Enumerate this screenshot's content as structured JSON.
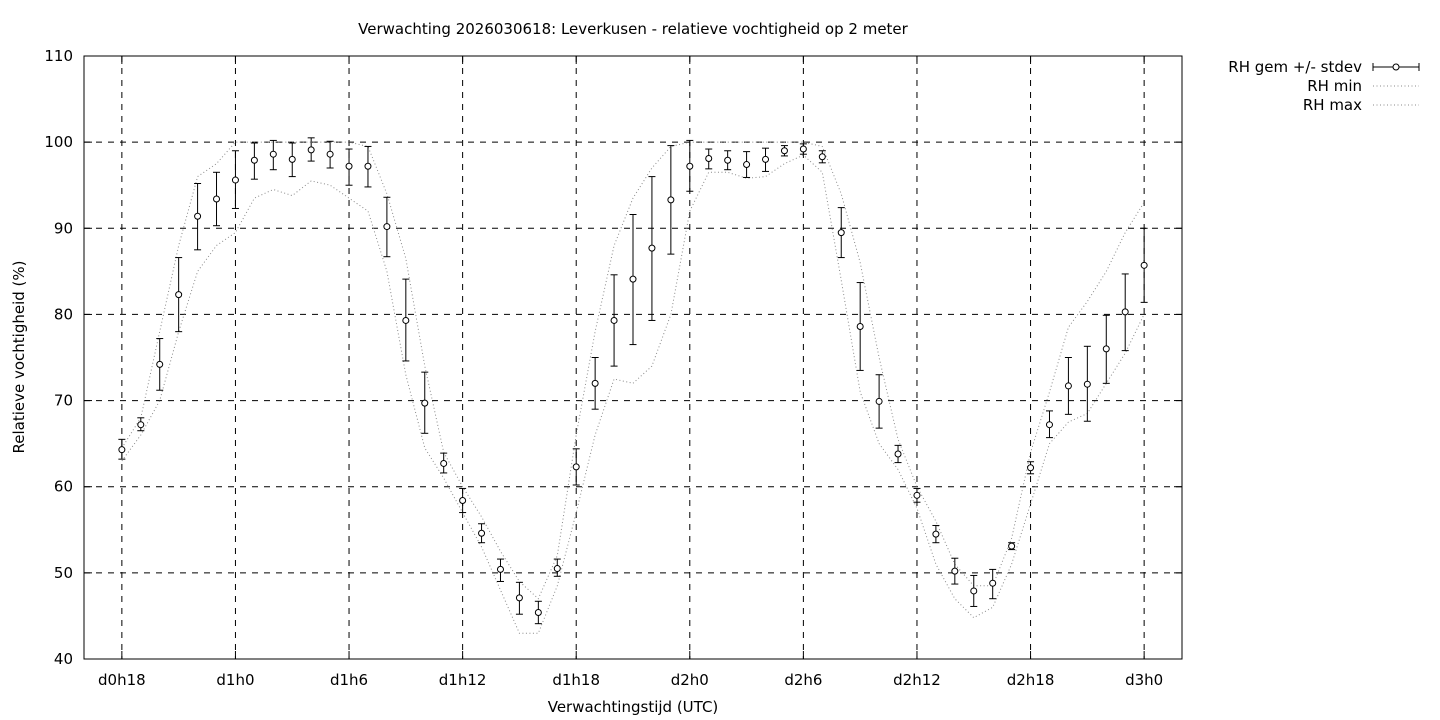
{
  "chart_data": {
    "type": "line",
    "title": "Verwachting 2026030618: Leverkusen - relatieve vochtigheid op 2 meter",
    "xlabel": "Verwachtingstijd (UTC)",
    "ylabel": "Relatieve vochtigheid (%)",
    "ylim": [
      40,
      110
    ],
    "xlim": [
      -2,
      56
    ],
    "grid": true,
    "legend_position": "top-right-outside",
    "x_ticks": [
      {
        "x": 0,
        "label": "d0h18"
      },
      {
        "x": 6,
        "label": "d1h0"
      },
      {
        "x": 12,
        "label": "d1h6"
      },
      {
        "x": 18,
        "label": "d1h12"
      },
      {
        "x": 24,
        "label": "d1h18"
      },
      {
        "x": 30,
        "label": "d2h0"
      },
      {
        "x": 36,
        "label": "d2h6"
      },
      {
        "x": 42,
        "label": "d2h12"
      },
      {
        "x": 48,
        "label": "d2h18"
      },
      {
        "x": 54,
        "label": "d3h0"
      }
    ],
    "y_ticks": [
      40,
      50,
      60,
      70,
      80,
      90,
      100,
      110
    ],
    "series": [
      {
        "name": "RH gem +/- stdev",
        "style": "errorbars",
        "x": [
          0,
          1,
          2,
          3,
          4,
          5,
          6,
          7,
          8,
          9,
          10,
          11,
          12,
          13,
          14,
          15,
          16,
          17,
          18,
          19,
          20,
          21,
          22,
          23,
          24,
          25,
          26,
          27,
          28,
          29,
          30,
          31,
          32,
          33,
          34,
          35,
          36,
          37,
          38,
          39,
          40,
          41,
          42,
          43,
          44,
          45,
          46,
          47,
          48,
          49,
          50,
          51,
          52,
          53,
          54
        ],
        "mean": [
          64.3,
          67.2,
          74.2,
          82.3,
          91.4,
          93.4,
          95.6,
          97.9,
          98.6,
          98.0,
          99.1,
          98.6,
          97.2,
          97.2,
          90.2,
          79.3,
          69.7,
          62.7,
          58.4,
          54.6,
          50.4,
          47.1,
          45.4,
          50.5,
          62.3,
          72.0,
          79.3,
          84.1,
          87.7,
          93.3,
          97.2,
          98.1,
          97.9,
          97.4,
          98.0,
          99.0,
          99.2,
          98.3,
          89.5,
          78.6,
          69.9,
          63.8,
          59.0,
          54.5,
          50.2,
          47.9,
          48.8,
          53.1,
          62.2,
          67.2,
          71.7,
          71.9,
          76.0,
          80.3,
          85.7
        ],
        "low": [
          63.2,
          66.5,
          71.2,
          78.0,
          87.5,
          90.3,
          92.3,
          95.7,
          96.8,
          96.0,
          97.8,
          97.0,
          95.0,
          94.8,
          86.7,
          74.6,
          66.2,
          61.6,
          57.0,
          53.5,
          49.0,
          45.2,
          44.1,
          49.6,
          60.2,
          69.0,
          74.0,
          76.5,
          79.3,
          87.0,
          94.3,
          96.9,
          96.8,
          95.9,
          96.6,
          98.4,
          98.6,
          97.6,
          86.6,
          73.5,
          66.8,
          62.8,
          58.2,
          53.5,
          48.7,
          46.1,
          47.0,
          52.7,
          61.5,
          65.7,
          68.4,
          67.6,
          72.0,
          75.8,
          81.4
        ],
        "high": [
          65.5,
          68.0,
          77.2,
          86.6,
          95.2,
          96.5,
          99.0,
          99.9,
          100.2,
          99.9,
          100.5,
          100.1,
          99.2,
          99.5,
          93.6,
          84.1,
          73.3,
          63.9,
          59.8,
          55.7,
          51.6,
          48.9,
          46.7,
          51.6,
          64.4,
          75.0,
          84.6,
          91.6,
          96.0,
          99.6,
          100.2,
          99.2,
          99.0,
          98.9,
          99.3,
          99.6,
          99.8,
          99.0,
          92.4,
          83.7,
          73.0,
          64.8,
          59.8,
          55.5,
          51.7,
          49.7,
          50.4,
          53.5,
          62.9,
          68.8,
          75.0,
          76.3,
          79.9,
          84.7,
          90.0
        ]
      },
      {
        "name": "RH min",
        "style": "dotted",
        "x": [
          0,
          1,
          2,
          3,
          4,
          5,
          6,
          7,
          8,
          9,
          10,
          11,
          12,
          13,
          14,
          15,
          16,
          17,
          18,
          19,
          20,
          21,
          22,
          23,
          24,
          25,
          26,
          27,
          28,
          29,
          30,
          31,
          32,
          33,
          34,
          35,
          36,
          37,
          38,
          39,
          40,
          41,
          42,
          43,
          44,
          45,
          46,
          47,
          48,
          49,
          50,
          51,
          52,
          53,
          54
        ],
        "values": [
          63.0,
          66.0,
          70.0,
          78.0,
          85.0,
          88.0,
          89.5,
          93.5,
          94.5,
          93.8,
          95.5,
          95.0,
          93.5,
          92.0,
          85.0,
          73.0,
          64.5,
          61.0,
          57.0,
          53.0,
          48.0,
          43.0,
          43.0,
          48.5,
          57.0,
          66.0,
          72.5,
          72.0,
          74.0,
          80.0,
          92.0,
          96.5,
          96.5,
          95.8,
          96.0,
          97.5,
          98.5,
          96.5,
          84.0,
          71.0,
          65.0,
          62.0,
          57.5,
          51.0,
          47.0,
          44.8,
          46.0,
          51.0,
          58.0,
          65.0,
          67.5,
          68.5,
          72.0,
          75.5,
          80.0
        ]
      },
      {
        "name": "RH max",
        "style": "dotted",
        "x": [
          0,
          1,
          2,
          3,
          4,
          5,
          6,
          7,
          8,
          9,
          10,
          11,
          12,
          13,
          14,
          15,
          16,
          17,
          18,
          19,
          20,
          21,
          22,
          23,
          24,
          25,
          26,
          27,
          28,
          29,
          30,
          31,
          32,
          33,
          34,
          35,
          36,
          37,
          38,
          39,
          40,
          41,
          42,
          43,
          44,
          45,
          46,
          47,
          48,
          49,
          50,
          51,
          52,
          53,
          54
        ],
        "values": [
          64.5,
          68.0,
          78.0,
          88.0,
          96.0,
          97.5,
          100.0,
          100.0,
          100.0,
          100.0,
          100.0,
          100.0,
          100.0,
          99.5,
          94.0,
          86.5,
          74.0,
          64.0,
          60.0,
          56.5,
          52.5,
          49.0,
          47.0,
          52.0,
          66.0,
          78.0,
          88.0,
          93.5,
          97.0,
          99.5,
          100.0,
          100.0,
          100.0,
          100.0,
          100.0,
          100.0,
          100.0,
          99.5,
          94.0,
          86.0,
          75.0,
          65.5,
          60.0,
          56.0,
          51.0,
          48.5,
          48.5,
          54.0,
          64.0,
          71.0,
          78.5,
          81.5,
          85.0,
          89.5,
          93.0
        ]
      }
    ]
  }
}
